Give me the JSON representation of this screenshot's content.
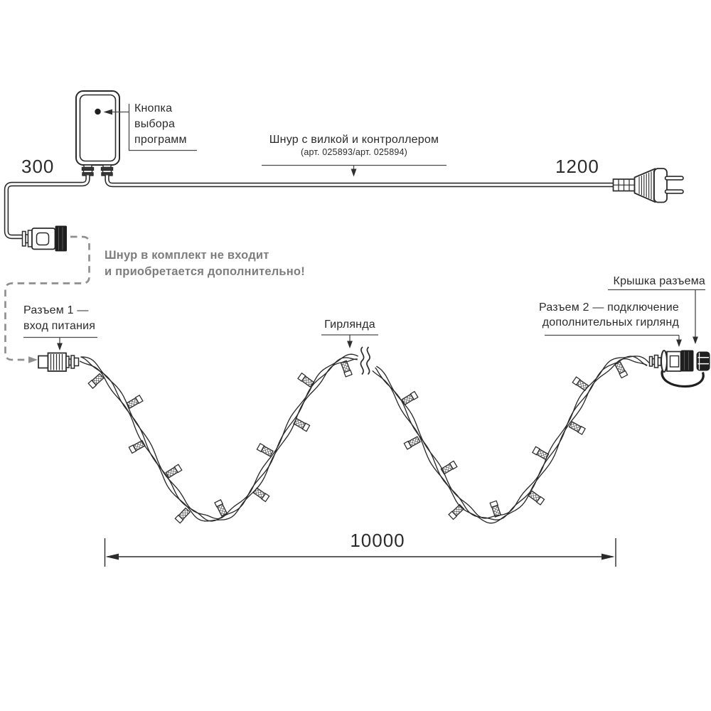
{
  "colors": {
    "ink": "#2b2b2b",
    "black_fill": "#1f1f1f",
    "gray_text": "#7d7d7d",
    "dash_line": "#8f8f8f",
    "leader_line": "#4a4a4a"
  },
  "labels": {
    "program_button": "Кнопка выбора программ",
    "cord_with_plug": "Шнур с вилкой и контроллером",
    "cord_sku": "(арт. 025893/арт. 025894)",
    "not_included_1": "Шнур в комплект не входит",
    "not_included_2": "и приобретается дополнительно!",
    "connector1_1": "Разъем 1 —",
    "connector1_2": "вход питания",
    "garland": "Гирлянда",
    "connector2_1": "Разъем 2 — подключение",
    "connector2_2": "дополнительных гирлянд",
    "cap": "Крышка разъема"
  },
  "dimensions": {
    "controller_to_connector": "300",
    "cord_to_plug": "1200",
    "garland_length": "10000"
  }
}
